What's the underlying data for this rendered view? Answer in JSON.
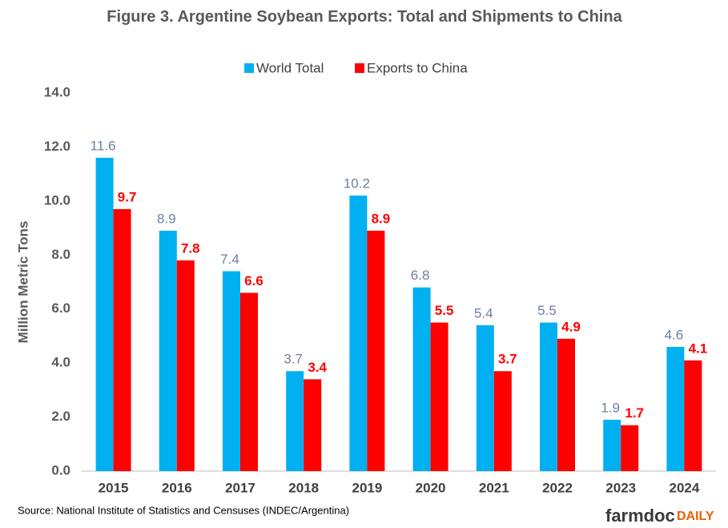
{
  "chart_data": {
    "type": "bar",
    "title": "Figure 3. Argentine Soybean Exports: Total and Shipments to China",
    "y_label": "Million Metric Tons",
    "source": "Source: National Institute of Statistics and Censuses (INDEC/Argentina)",
    "logo": [
      "farmdoc",
      "DAILY"
    ],
    "categories": [
      "2015",
      "2016",
      "2017",
      "2018",
      "2019",
      "2020",
      "2021",
      "2022",
      "2023",
      "2024"
    ],
    "series": [
      {
        "name": "World Total",
        "color": "#00b0f0",
        "label_color": "#6b7fa3",
        "values": [
          11.6,
          8.9,
          7.4,
          3.7,
          10.2,
          6.8,
          5.4,
          5.5,
          1.9,
          4.6
        ]
      },
      {
        "name": "Exports to China",
        "color": "#ff0000",
        "label_color": "#ff0000",
        "values": [
          9.7,
          7.8,
          6.6,
          3.4,
          8.9,
          5.5,
          3.7,
          4.9,
          1.7,
          4.1
        ]
      }
    ],
    "ylim": [
      0,
      14
    ],
    "yticks": [
      {
        "value": 0,
        "label": "0.0"
      },
      {
        "value": 2,
        "label": "2.0"
      },
      {
        "value": 4,
        "label": "4.0"
      },
      {
        "value": 6,
        "label": "6.0"
      },
      {
        "value": 8,
        "label": "8.0"
      },
      {
        "value": 10,
        "label": "10.0"
      },
      {
        "value": 12,
        "label": "12.0"
      },
      {
        "value": 14,
        "label": "14.0"
      }
    ],
    "grid": false,
    "legend": "top"
  }
}
